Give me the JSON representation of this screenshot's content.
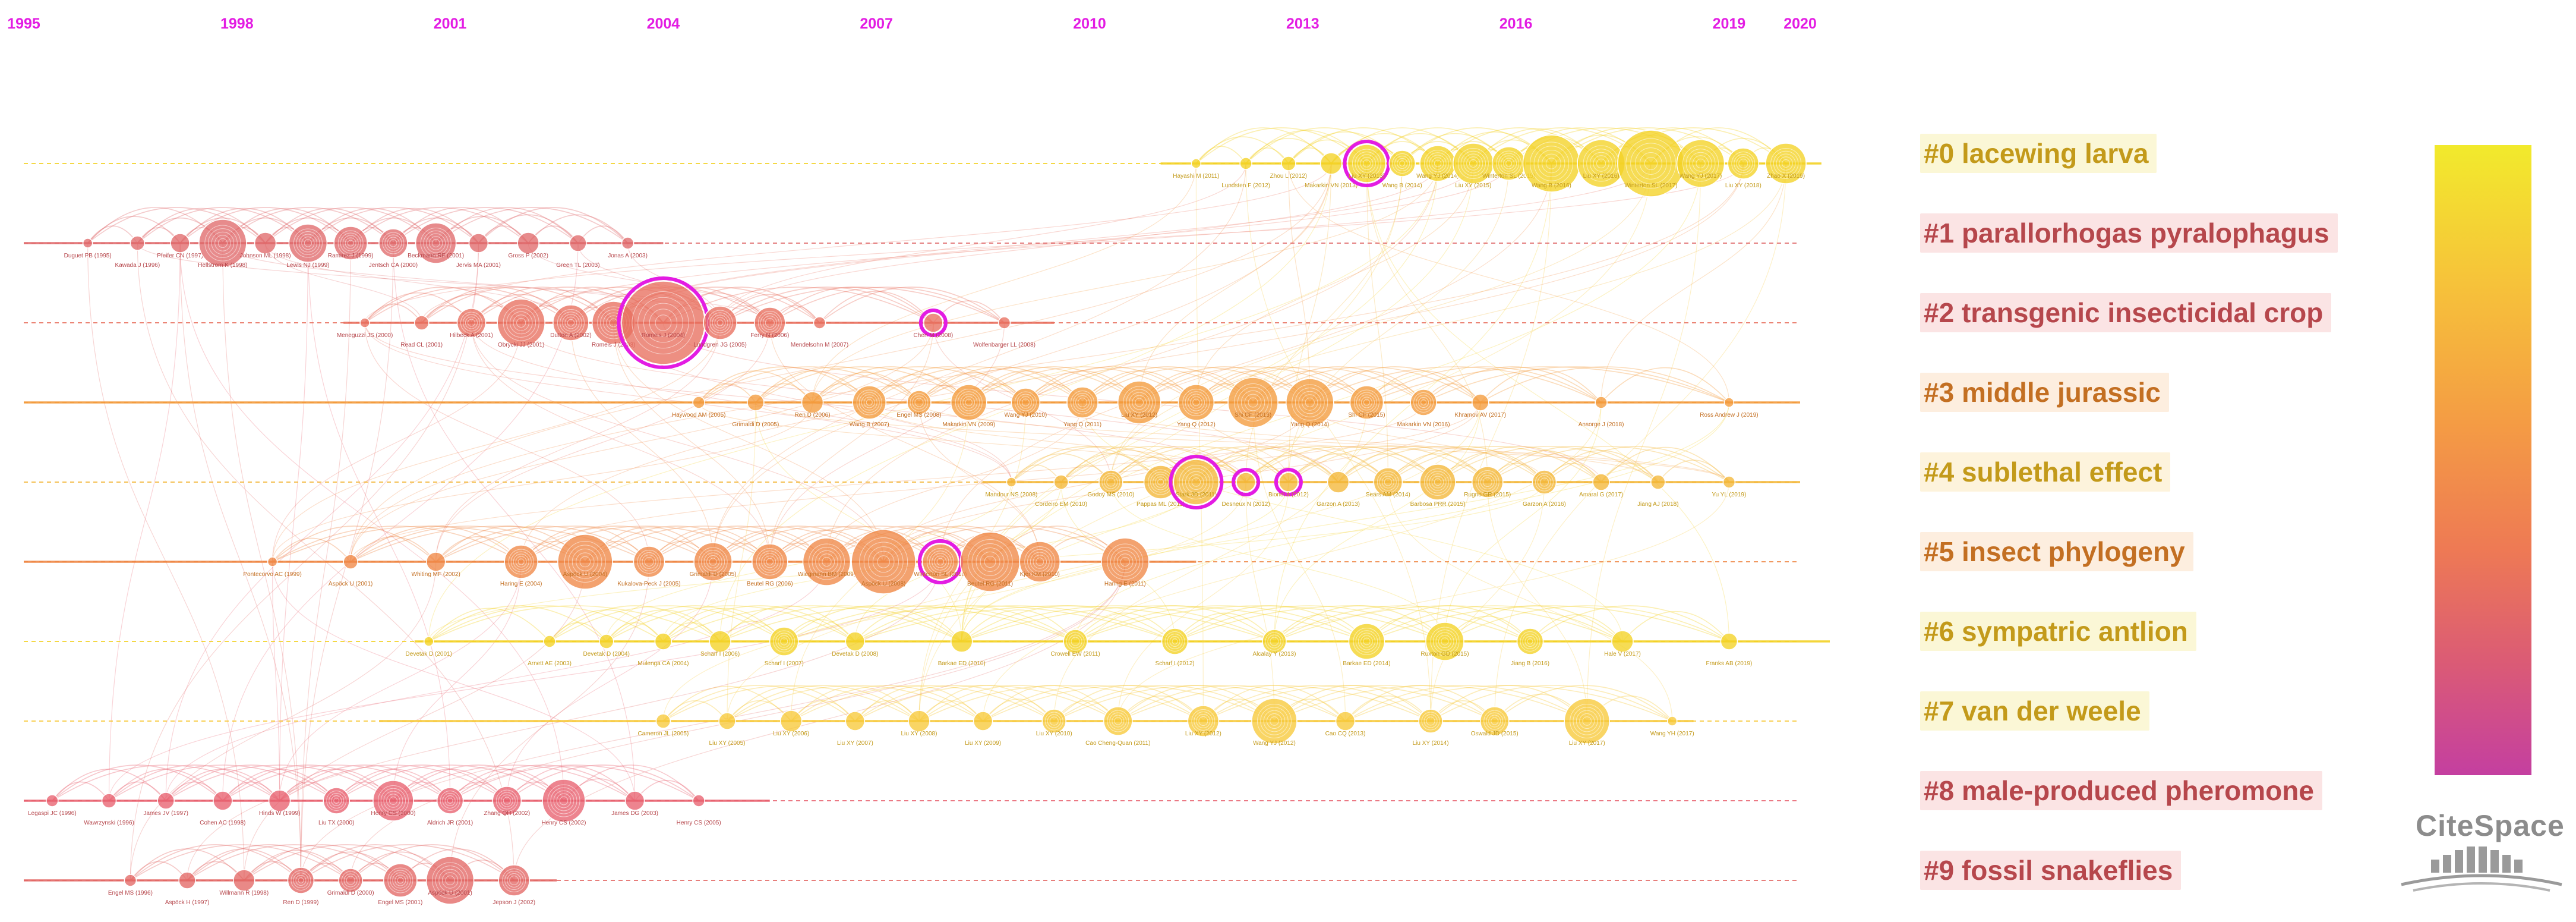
{
  "timeline": {
    "years": [
      "1995",
      "1998",
      "2001",
      "2004",
      "2007",
      "2010",
      "2013",
      "2016",
      "2019",
      "2020"
    ],
    "year_values": [
      1995,
      1998,
      2001,
      2004,
      2007,
      2010,
      2013,
      2016,
      2019,
      2020
    ],
    "year_color": "#e31ce3"
  },
  "clusters": [
    {
      "id": "#0",
      "label": "#0 lacewing larva",
      "start": 2011,
      "end": 2020.3,
      "color": "#f3d225",
      "text_color": "#c39a1a",
      "bg": "#fbf7d6",
      "nodes": [
        {
          "year": 2011.5,
          "size": 8,
          "name": "Hayashi M (2011)"
        },
        {
          "year": 2012.2,
          "size": 10,
          "name": "Lundsten F (2012)"
        },
        {
          "year": 2012.8,
          "size": 12,
          "name": "Zhou L (2012)"
        },
        {
          "year": 2013.4,
          "size": 18,
          "name": "Makarkin VN (2013)"
        },
        {
          "year": 2013.9,
          "size": 32,
          "name": "Liu XY (2013)",
          "burst": true
        },
        {
          "year": 2014.4,
          "size": 22,
          "name": "Wang B (2014)"
        },
        {
          "year": 2014.9,
          "size": 30,
          "name": "Wang YJ (2014)"
        },
        {
          "year": 2015.4,
          "size": 34,
          "name": "Liu XY (2015)"
        },
        {
          "year": 2015.9,
          "size": 28,
          "name": "Winterton SL (2015)"
        },
        {
          "year": 2016.5,
          "size": 48,
          "name": "Wang B (2016)"
        },
        {
          "year": 2017.2,
          "size": 40,
          "name": "Liu XY (2016)"
        },
        {
          "year": 2017.9,
          "size": 56,
          "name": "Winterton SL (2017)"
        },
        {
          "year": 2018.6,
          "size": 40,
          "name": "Wang YJ (2017)"
        },
        {
          "year": 2019.2,
          "size": 26,
          "name": "Liu XY (2018)"
        },
        {
          "year": 2019.8,
          "size": 34,
          "name": "Zhao X (2019)"
        }
      ]
    },
    {
      "id": "#1",
      "label": "#1 parallorhogas pyralophagus",
      "start": 1995,
      "end": 2004,
      "color": "#e06a6c",
      "text_color": "#b6474c",
      "bg": "#fbe4e4",
      "nodes": [
        {
          "year": 1995.9,
          "size": 8,
          "name": "Duguet PB (1995)"
        },
        {
          "year": 1996.6,
          "size": 12,
          "name": "Kawada J (1996)"
        },
        {
          "year": 1997.2,
          "size": 16,
          "name": "Pfeifer CN (1997)"
        },
        {
          "year": 1997.8,
          "size": 40,
          "name": "Hellstrom K (1998)"
        },
        {
          "year": 1998.4,
          "size": 18,
          "name": "Johnson ML (1998)"
        },
        {
          "year": 1999.0,
          "size": 32,
          "name": "Lewis NJ (1999)"
        },
        {
          "year": 1999.6,
          "size": 28,
          "name": "Ramirez J (1999)"
        },
        {
          "year": 2000.2,
          "size": 24,
          "name": "Jentsch CA (2000)"
        },
        {
          "year": 2000.8,
          "size": 34,
          "name": "Beckmann RF (2001)"
        },
        {
          "year": 2001.4,
          "size": 16,
          "name": "Jervis MA (2001)"
        },
        {
          "year": 2002.1,
          "size": 18,
          "name": "Gross P (2002)"
        },
        {
          "year": 2002.8,
          "size": 14,
          "name": "Green TL (2003)"
        },
        {
          "year": 2003.5,
          "size": 10,
          "name": "Jonas A (2003)"
        }
      ]
    },
    {
      "id": "#2",
      "label": "#2 transgenic insecticidal crop",
      "start": 1999.5,
      "end": 2009.5,
      "color": "#e8705f",
      "text_color": "#b6474c",
      "bg": "#fbe4e4",
      "nodes": [
        {
          "year": 1999.8,
          "size": 8,
          "name": "Meneguzzi JS (2000)"
        },
        {
          "year": 2000.6,
          "size": 12,
          "name": "Read CL (2001)"
        },
        {
          "year": 2001.3,
          "size": 24,
          "name": "Hilbeck A (2001)"
        },
        {
          "year": 2002.0,
          "size": 40,
          "name": "Obrycki JJ (2001)"
        },
        {
          "year": 2002.7,
          "size": 30,
          "name": "Dutton A (2002)"
        },
        {
          "year": 2003.3,
          "size": 36,
          "name": "Romeis J (2003)"
        },
        {
          "year": 2004.0,
          "size": 70,
          "name": "Romeis J (2004)",
          "burst": true
        },
        {
          "year": 2004.8,
          "size": 28,
          "name": "Lundgren JG (2005)"
        },
        {
          "year": 2005.5,
          "size": 26,
          "name": "Ferry N (2006)"
        },
        {
          "year": 2006.2,
          "size": 10,
          "name": "Mendelsohn M (2007)"
        },
        {
          "year": 2007.8,
          "size": 16,
          "name": "Chen M (2008)",
          "burst": true
        },
        {
          "year": 2008.8,
          "size": 10,
          "name": "Wolfenbarger LL (2008)"
        }
      ]
    },
    {
      "id": "#3",
      "label": "#3 middle jurassic",
      "start": 1995,
      "end": 2020,
      "color": "#f39b3c",
      "text_color": "#c36f22",
      "bg": "#fdeedf",
      "nodes": [
        {
          "year": 2004.5,
          "size": 10,
          "name": "Haywood AM (2005)"
        },
        {
          "year": 2005.3,
          "size": 14,
          "name": "Grimaldi D (2005)"
        },
        {
          "year": 2006.1,
          "size": 18,
          "name": "Ren D (2006)"
        },
        {
          "year": 2006.9,
          "size": 28,
          "name": "Wang B (2007)"
        },
        {
          "year": 2007.6,
          "size": 20,
          "name": "Engel MS (2008)"
        },
        {
          "year": 2008.3,
          "size": 30,
          "name": "Makarkin VN (2009)"
        },
        {
          "year": 2009.1,
          "size": 24,
          "name": "Wang YJ (2010)"
        },
        {
          "year": 2009.9,
          "size": 26,
          "name": "Yang Q (2011)"
        },
        {
          "year": 2010.7,
          "size": 36,
          "name": "Liu XY (2012)"
        },
        {
          "year": 2011.5,
          "size": 30,
          "name": "Yang Q (2012)"
        },
        {
          "year": 2012.3,
          "size": 42,
          "name": "Shi CF (2013)"
        },
        {
          "year": 2013.1,
          "size": 40,
          "name": "Yang Q (2014)"
        },
        {
          "year": 2013.9,
          "size": 28,
          "name": "Shi CF (2015)"
        },
        {
          "year": 2014.7,
          "size": 22,
          "name": "Makarkin VN (2016)"
        },
        {
          "year": 2015.5,
          "size": 14,
          "name": "Khramov AV (2017)"
        },
        {
          "year": 2017.2,
          "size": 10,
          "name": "Ansorge J (2018)"
        },
        {
          "year": 2019.0,
          "size": 8,
          "name": "Ross Andrew J (2019)"
        }
      ]
    },
    {
      "id": "#4",
      "label": "#4 sublethal effect",
      "start": 2008.5,
      "end": 2020,
      "color": "#f3b739",
      "text_color": "#c39a1a",
      "bg": "#fdf3dc",
      "nodes": [
        {
          "year": 2008.9,
          "size": 8,
          "name": "Mandour NS (2008)"
        },
        {
          "year": 2009.6,
          "size": 12,
          "name": "Cordeiro EM (2010)"
        },
        {
          "year": 2010.3,
          "size": 20,
          "name": "Godoy MS (2010)"
        },
        {
          "year": 2011.0,
          "size": 28,
          "name": "Pappas ML (2011)"
        },
        {
          "year": 2011.5,
          "size": 38,
          "name": "Stark JD (2011)",
          "burst": true
        },
        {
          "year": 2012.2,
          "size": 16,
          "name": "Desneux N (2012)",
          "burst": true
        },
        {
          "year": 2012.8,
          "size": 16,
          "name": "Biondi A (2012)",
          "burst": true
        },
        {
          "year": 2013.5,
          "size": 18,
          "name": "Garzon A (2013)"
        },
        {
          "year": 2014.2,
          "size": 24,
          "name": "Sears AM (2014)"
        },
        {
          "year": 2014.9,
          "size": 30,
          "name": "Barbosa PRR (2015)"
        },
        {
          "year": 2015.6,
          "size": 26,
          "name": "Rugno GR (2015)"
        },
        {
          "year": 2016.4,
          "size": 20,
          "name": "Garzon A (2016)"
        },
        {
          "year": 2017.2,
          "size": 14,
          "name": "Amaral G (2017)"
        },
        {
          "year": 2018.0,
          "size": 12,
          "name": "Jiang AJ (2018)"
        },
        {
          "year": 2019.0,
          "size": 10,
          "name": "Yu YL (2019)"
        }
      ]
    },
    {
      "id": "#5",
      "label": "#5 insect phylogeny",
      "start": 1995,
      "end": 2011.5,
      "color": "#ef8846",
      "text_color": "#c36f22",
      "bg": "#fdeedf",
      "nodes": [
        {
          "year": 1998.5,
          "size": 8,
          "name": "Pontecorvo AC (1999)"
        },
        {
          "year": 1999.6,
          "size": 12,
          "name": "Aspöck U (2001)"
        },
        {
          "year": 2000.8,
          "size": 16,
          "name": "Whiting MF (2002)"
        },
        {
          "year": 2002.0,
          "size": 28,
          "name": "Haring E (2004)"
        },
        {
          "year": 2002.9,
          "size": 46,
          "name": "Aspöck U (2004)"
        },
        {
          "year": 2003.8,
          "size": 26,
          "name": "Kukalova-Peck J (2005)"
        },
        {
          "year": 2004.7,
          "size": 32,
          "name": "Grimaldi D (2005)"
        },
        {
          "year": 2005.5,
          "size": 30,
          "name": "Beutel RG (2006)"
        },
        {
          "year": 2006.3,
          "size": 40,
          "name": "Wiegmann BM (2009)"
        },
        {
          "year": 2007.1,
          "size": 54,
          "name": "Aspöck U (2008)"
        },
        {
          "year": 2007.9,
          "size": 30,
          "name": "Winterton SL (2010)",
          "burst": true
        },
        {
          "year": 2008.6,
          "size": 50,
          "name": "Beutel RG (2011)"
        },
        {
          "year": 2009.3,
          "size": 34,
          "name": "Kjer KM (2010)"
        },
        {
          "year": 2010.5,
          "size": 40,
          "name": "Haring E (2011)"
        }
      ]
    },
    {
      "id": "#6",
      "label": "#6 sympatric antlion",
      "start": 2000.5,
      "end": 2020.5,
      "color": "#f3d225",
      "text_color": "#c39a1a",
      "bg": "#fbf7d6",
      "nodes": [
        {
          "year": 2000.7,
          "size": 8,
          "name": "Devetak D (2001)"
        },
        {
          "year": 2002.4,
          "size": 10,
          "name": "Arnett AE (2003)"
        },
        {
          "year": 2003.2,
          "size": 12,
          "name": "Devetak D (2004)"
        },
        {
          "year": 2004.0,
          "size": 14,
          "name": "Mulenga CA (2004)"
        },
        {
          "year": 2004.8,
          "size": 18,
          "name": "Scharf I (2006)"
        },
        {
          "year": 2005.7,
          "size": 24,
          "name": "Scharf I (2007)"
        },
        {
          "year": 2006.7,
          "size": 16,
          "name": "Devetak D (2008)"
        },
        {
          "year": 2008.2,
          "size": 18,
          "name": "Barkae ED (2010)"
        },
        {
          "year": 2009.8,
          "size": 20,
          "name": "Crowell EW (2011)"
        },
        {
          "year": 2011.2,
          "size": 22,
          "name": "Scharf I (2012)"
        },
        {
          "year": 2012.6,
          "size": 20,
          "name": "Alcalay Y (2013)"
        },
        {
          "year": 2013.9,
          "size": 30,
          "name": "Barkae ED (2014)"
        },
        {
          "year": 2015.0,
          "size": 32,
          "name": "Ruxton GD (2015)"
        },
        {
          "year": 2016.2,
          "size": 22,
          "name": "Jiang B (2016)"
        },
        {
          "year": 2017.5,
          "size": 18,
          "name": "Hale V (2017)"
        },
        {
          "year": 2019.0,
          "size": 14,
          "name": "Franks AB (2019)"
        }
      ]
    },
    {
      "id": "#7",
      "label": "#7 van der weele",
      "start": 2000,
      "end": 2018.5,
      "color": "#f7c93a",
      "text_color": "#c39a1a",
      "bg": "#fbf7d6",
      "nodes": [
        {
          "year": 2004.0,
          "size": 12,
          "name": "Cameron JL (2005)"
        },
        {
          "year": 2004.9,
          "size": 14,
          "name": "Liu XY (2005)"
        },
        {
          "year": 2005.8,
          "size": 18,
          "name": "Liu XY (2006)"
        },
        {
          "year": 2006.7,
          "size": 16,
          "name": "Liu XY (2007)"
        },
        {
          "year": 2007.6,
          "size": 18,
          "name": "Liu XY (2008)"
        },
        {
          "year": 2008.5,
          "size": 16,
          "name": "Liu XY (2009)"
        },
        {
          "year": 2009.5,
          "size": 20,
          "name": "Liu XY (2010)"
        },
        {
          "year": 2010.4,
          "size": 24,
          "name": "Cao Cheng-Quan (2011)"
        },
        {
          "year": 2011.6,
          "size": 26,
          "name": "Liu XY (2012)"
        },
        {
          "year": 2012.6,
          "size": 38,
          "name": "Wang YJ (2012)"
        },
        {
          "year": 2013.6,
          "size": 16,
          "name": "Cao CQ (2013)"
        },
        {
          "year": 2014.8,
          "size": 20,
          "name": "Liu XY (2014)"
        },
        {
          "year": 2015.7,
          "size": 24,
          "name": "Oswald JD (2015)"
        },
        {
          "year": 2017.0,
          "size": 38,
          "name": "Liu XY (2017)"
        },
        {
          "year": 2018.2,
          "size": 8,
          "name": "Wang YH (2017)"
        }
      ]
    },
    {
      "id": "#8",
      "label": "#8 male-produced pheromone",
      "start": 1995,
      "end": 2005.5,
      "color": "#e8626f",
      "text_color": "#b6474c",
      "bg": "#fbe4e4",
      "nodes": [
        {
          "year": 1995.4,
          "size": 10,
          "name": "Legaspi JC (1996)"
        },
        {
          "year": 1996.2,
          "size": 12,
          "name": "Wawrzynski (1996)"
        },
        {
          "year": 1997.0,
          "size": 14,
          "name": "James JV (1997)"
        },
        {
          "year": 1997.8,
          "size": 16,
          "name": "Cohen AC (1998)"
        },
        {
          "year": 1998.6,
          "size": 18,
          "name": "Hinds W (1999)"
        },
        {
          "year": 1999.4,
          "size": 22,
          "name": "Liu TX (2000)"
        },
        {
          "year": 2000.2,
          "size": 34,
          "name": "Henry CS (2000)"
        },
        {
          "year": 2001.0,
          "size": 22,
          "name": "Aldrich JR (2001)"
        },
        {
          "year": 2001.8,
          "size": 24,
          "name": "Zhang QH (2002)"
        },
        {
          "year": 2002.6,
          "size": 36,
          "name": "Henry CS (2002)"
        },
        {
          "year": 2003.6,
          "size": 16,
          "name": "James DG (2003)"
        },
        {
          "year": 2004.5,
          "size": 10,
          "name": "Henry CS (2005)"
        }
      ]
    },
    {
      "id": "#9",
      "label": "#9 fossil snakeflies",
      "start": 1995,
      "end": 2002.5,
      "color": "#e36865",
      "text_color": "#b6474c",
      "bg": "#fbe4e4",
      "nodes": [
        {
          "year": 1996.5,
          "size": 10,
          "name": "Engel MS (1996)"
        },
        {
          "year": 1997.3,
          "size": 14,
          "name": "Aspöck H (1997)"
        },
        {
          "year": 1998.1,
          "size": 18,
          "name": "Willmann R (1998)"
        },
        {
          "year": 1998.9,
          "size": 22,
          "name": "Ren D (1999)"
        },
        {
          "year": 1999.6,
          "size": 20,
          "name": "Grimaldi D (2000)"
        },
        {
          "year": 2000.3,
          "size": 28,
          "name": "Engel MS (2001)"
        },
        {
          "year": 2001.0,
          "size": 40,
          "name": "Aspöck U (2001)"
        },
        {
          "year": 2001.9,
          "size": 26,
          "name": "Jepson J (2002)"
        }
      ]
    }
  ],
  "colors": {
    "burst_ring": "#e31ce3",
    "logo_gray": "#8c8c8c"
  },
  "logo": {
    "text": "CiteSpace"
  }
}
